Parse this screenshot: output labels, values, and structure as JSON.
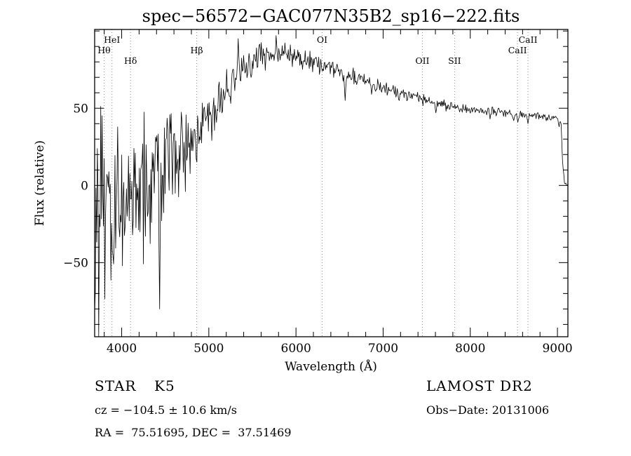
{
  "footer": {
    "object_class": "STAR",
    "subclass": "K5",
    "survey": "LAMOST DR2",
    "cz": "cz = −104.5 ± 10.6 km/s",
    "obs_date": "Obs−Date: 20131006",
    "radec": "RA =  75.51695, DEC =  37.51469"
  },
  "chart_data": {
    "type": "line",
    "title": "spec−56572−GAC077N35B2_sp16−222.fits",
    "xlabel": "Wavelength (Å)",
    "ylabel": "Flux (relative)",
    "xlim": [
      3690,
      9120
    ],
    "ylim": [
      -98,
      101
    ],
    "xticks": [
      4000,
      5000,
      6000,
      7000,
      8000,
      9000
    ],
    "yticks": [
      -50,
      0,
      50
    ],
    "x_minor_step": 200,
    "y_minor_step": 10,
    "grid": false,
    "legend": "none",
    "line_color": "#000000",
    "marker_line_color": "#8a8a8a",
    "spectral_lines": [
      {
        "label": "HeI",
        "wavelength": 3889,
        "row": 0
      },
      {
        "label": "Hθ",
        "wavelength": 3798,
        "row": 1
      },
      {
        "label": "Hδ",
        "wavelength": 4102,
        "row": 2
      },
      {
        "label": "Hβ",
        "wavelength": 4861,
        "row": 1
      },
      {
        "label": "OI",
        "wavelength": 6300,
        "row": 0
      },
      {
        "label": "OII",
        "wavelength": 7450,
        "row": 2
      },
      {
        "label": "SII",
        "wavelength": 7820,
        "row": 2
      },
      {
        "label": "CaII",
        "wavelength": 8542,
        "row": 1
      },
      {
        "label": "CaII",
        "wavelength": 8662,
        "row": 0
      }
    ],
    "baseline": [
      [
        3690,
        -20
      ],
      [
        3750,
        -22
      ],
      [
        3800,
        -20
      ],
      [
        3850,
        -15
      ],
      [
        3900,
        -12
      ],
      [
        3950,
        -10
      ],
      [
        4000,
        -8
      ],
      [
        4050,
        -6
      ],
      [
        4100,
        -5
      ],
      [
        4150,
        -3
      ],
      [
        4200,
        -1
      ],
      [
        4250,
        2
      ],
      [
        4300,
        4
      ],
      [
        4350,
        3
      ],
      [
        4400,
        2
      ],
      [
        4450,
        5
      ],
      [
        4500,
        10
      ],
      [
        4550,
        13
      ],
      [
        4600,
        16
      ],
      [
        4700,
        21
      ],
      [
        4800,
        27
      ],
      [
        4900,
        33
      ],
      [
        5000,
        41
      ],
      [
        5100,
        51
      ],
      [
        5200,
        62
      ],
      [
        5300,
        71
      ],
      [
        5400,
        77
      ],
      [
        5500,
        80
      ],
      [
        5600,
        82
      ],
      [
        5700,
        83
      ],
      [
        5800,
        85
      ],
      [
        5900,
        84
      ],
      [
        6000,
        82
      ],
      [
        6100,
        81
      ],
      [
        6200,
        80
      ],
      [
        6300,
        78
      ],
      [
        6400,
        76
      ],
      [
        6500,
        74
      ],
      [
        6600,
        72
      ],
      [
        6700,
        70
      ],
      [
        6800,
        68
      ],
      [
        6900,
        65
      ],
      [
        7000,
        63
      ],
      [
        7100,
        61
      ],
      [
        7200,
        60
      ],
      [
        7300,
        58
      ],
      [
        7400,
        57
      ],
      [
        7500,
        55
      ],
      [
        7600,
        53
      ],
      [
        7700,
        52
      ],
      [
        7800,
        51
      ],
      [
        7900,
        50
      ],
      [
        8000,
        50
      ],
      [
        8100,
        49
      ],
      [
        8200,
        48
      ],
      [
        8300,
        48
      ],
      [
        8400,
        47
      ],
      [
        8500,
        47
      ],
      [
        8600,
        46
      ],
      [
        8700,
        45
      ],
      [
        8800,
        45
      ],
      [
        8900,
        44
      ],
      [
        9000,
        43
      ],
      [
        9040,
        42
      ],
      [
        9060,
        15
      ],
      [
        9080,
        2
      ],
      [
        9120,
        1
      ]
    ],
    "noise_amplitude": [
      [
        3690,
        55
      ],
      [
        3800,
        52
      ],
      [
        3900,
        48
      ],
      [
        4000,
        44
      ],
      [
        4100,
        40
      ],
      [
        4200,
        36
      ],
      [
        4300,
        32
      ],
      [
        4400,
        30
      ],
      [
        4500,
        24
      ],
      [
        4600,
        20
      ],
      [
        4700,
        17
      ],
      [
        4800,
        14
      ],
      [
        4900,
        12
      ],
      [
        5000,
        11
      ],
      [
        5200,
        9
      ],
      [
        5400,
        7
      ],
      [
        5600,
        6
      ],
      [
        5800,
        6
      ],
      [
        6000,
        5
      ],
      [
        6300,
        4
      ],
      [
        6600,
        3.5
      ],
      [
        7000,
        3
      ],
      [
        7500,
        2.5
      ],
      [
        8000,
        2
      ],
      [
        8500,
        1.8
      ],
      [
        9000,
        1.5
      ],
      [
        9120,
        1.5
      ]
    ],
    "spikes": [
      [
        4432,
        -80
      ],
      [
        5338,
        95
      ],
      [
        5575,
        91
      ],
      [
        5772,
        97
      ],
      [
        6563,
        55
      ],
      [
        6868,
        59
      ],
      [
        7186,
        55
      ],
      [
        7605,
        47
      ],
      [
        8230,
        43
      ],
      [
        8498,
        42
      ],
      [
        8545,
        41
      ],
      [
        8665,
        40
      ],
      [
        9020,
        38
      ]
    ],
    "noise_seed": 20131006
  }
}
